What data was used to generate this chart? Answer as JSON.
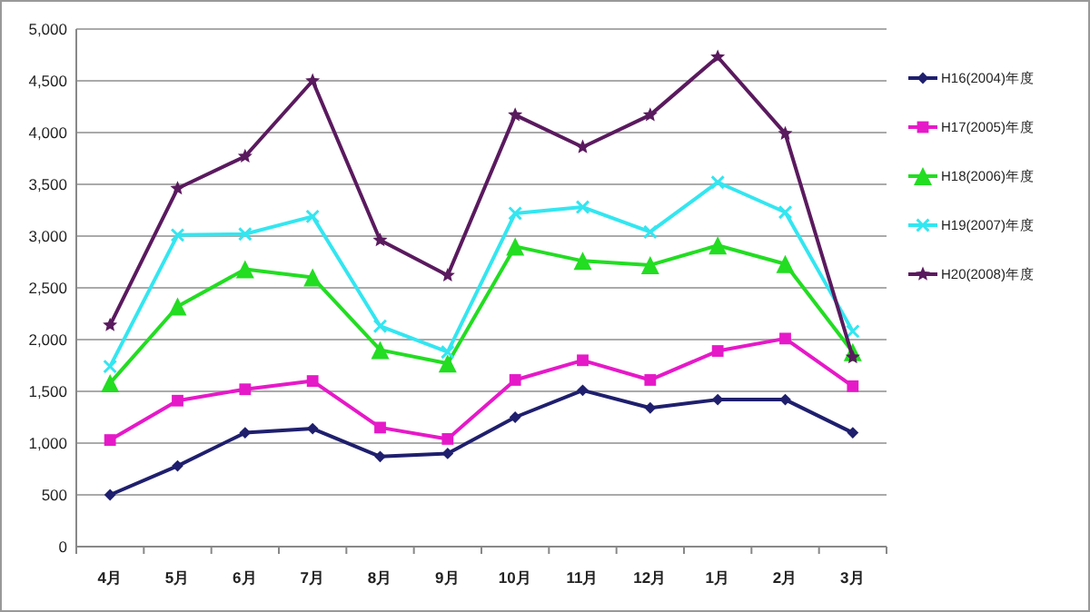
{
  "chart_data": {
    "type": "line",
    "categories": [
      "4月",
      "5月",
      "6月",
      "7月",
      "8月",
      "9月",
      "10月",
      "11月",
      "12月",
      "1月",
      "2月",
      "3月"
    ],
    "ylim": [
      0,
      5000
    ],
    "yticks": [
      {
        "value": 0,
        "label": "0"
      },
      {
        "value": 500,
        "label": "500"
      },
      {
        "value": 1000,
        "label": "1,000"
      },
      {
        "value": 1500,
        "label": "1,500"
      },
      {
        "value": 2000,
        "label": "2,000"
      },
      {
        "value": 2500,
        "label": "2,500"
      },
      {
        "value": 3000,
        "label": "3,000"
      },
      {
        "value": 3500,
        "label": "3,500"
      },
      {
        "value": 4000,
        "label": "4,000"
      },
      {
        "value": 4500,
        "label": "4,500"
      },
      {
        "value": 5000,
        "label": "5,000"
      }
    ],
    "grid": "y",
    "legend": "right",
    "line_style": "solid",
    "series": [
      {
        "name": "H16(2004)年度",
        "color": "#1f1f6e",
        "marker": "diamond",
        "values": [
          500,
          780,
          1100,
          1140,
          870,
          900,
          1250,
          1510,
          1340,
          1420,
          1420,
          1100
        ]
      },
      {
        "name": "H17(2005)年度",
        "color": "#e619c8",
        "marker": "square",
        "values": [
          1030,
          1410,
          1520,
          1600,
          1150,
          1040,
          1610,
          1800,
          1610,
          1890,
          2010,
          1550
        ]
      },
      {
        "name": "H18(2006)年度",
        "color": "#22dd22",
        "marker": "triangle",
        "values": [
          1580,
          2320,
          2680,
          2600,
          1900,
          1770,
          2900,
          2760,
          2720,
          2910,
          2730,
          1880
        ]
      },
      {
        "name": "H19(2007)年度",
        "color": "#33e6f0",
        "marker": "cross",
        "values": [
          1740,
          3010,
          3020,
          3190,
          2130,
          1880,
          3220,
          3280,
          3040,
          3520,
          3230,
          2080
        ]
      },
      {
        "name": "H20(2008)年度",
        "color": "#5a1a5e",
        "marker": "star",
        "values": [
          2140,
          3460,
          3770,
          4500,
          2960,
          2620,
          4170,
          3860,
          4170,
          4730,
          3990,
          1830
        ]
      }
    ]
  }
}
